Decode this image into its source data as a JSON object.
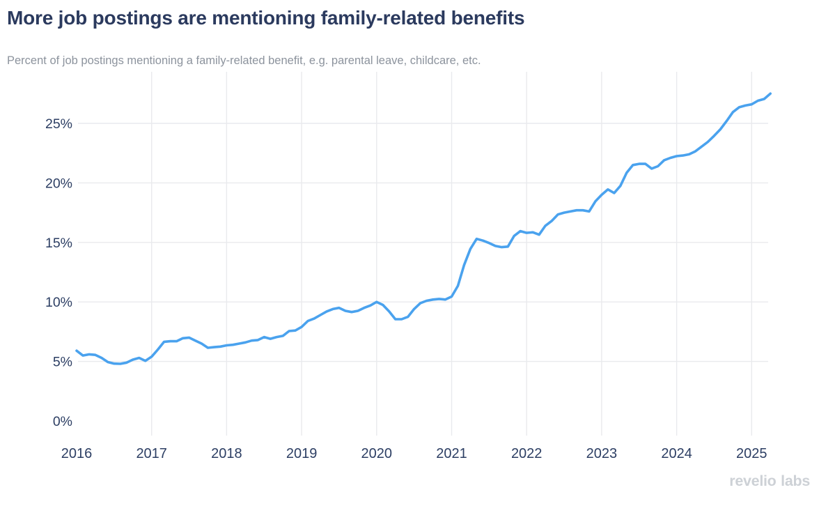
{
  "header": {
    "title": "More job postings are mentioning family-related benefits",
    "subtitle": "Percent of job postings mentioning a family-related benefit, e.g. parental leave, childcare, etc."
  },
  "footer": {
    "logo_text": "revelio labs"
  },
  "colors": {
    "line": "#4AA2EE",
    "title_text": "#2B3A5E",
    "subtitle_text": "#8C939D",
    "axis_label": "#2C3E63",
    "gridline": "#E9EAED",
    "logo_text": "#CDD1D6",
    "background": "#FFFFFF"
  },
  "chart_data": {
    "type": "line",
    "title": "More job postings are mentioning family-related benefits",
    "subtitle": "Percent of job postings mentioning a family-related benefit, e.g. parental leave, childcare, etc.",
    "xlabel": "",
    "ylabel": "Percent of job postings",
    "x_tick_labels": [
      "2016",
      "2017",
      "2018",
      "2019",
      "2020",
      "2021",
      "2022",
      "2023",
      "2024",
      "2025"
    ],
    "y_tick_labels": [
      "0%",
      "5%",
      "10%",
      "15%",
      "20%",
      "25%"
    ],
    "y_tick_values": [
      0,
      5,
      10,
      15,
      20,
      25
    ],
    "ylim": [
      0,
      29
    ],
    "grid": true,
    "legend_position": "none",
    "x_start_month": "2016-01",
    "x_end_month": "2025-04",
    "x_frequency": "monthly",
    "series": [
      {
        "name": "Percent of job postings mentioning a family-related benefit",
        "color": "#4AA2EE",
        "values": [
          5.9,
          5.5,
          5.6,
          5.55,
          5.3,
          4.95,
          4.82,
          4.8,
          4.9,
          5.15,
          5.3,
          5.05,
          5.4,
          6.0,
          6.65,
          6.7,
          6.7,
          6.95,
          7.0,
          6.75,
          6.5,
          6.15,
          6.2,
          6.25,
          6.35,
          6.4,
          6.5,
          6.6,
          6.75,
          6.8,
          7.05,
          6.9,
          7.05,
          7.15,
          7.55,
          7.6,
          7.9,
          8.4,
          8.6,
          8.9,
          9.2,
          9.4,
          9.5,
          9.25,
          9.15,
          9.25,
          9.5,
          9.7,
          10.0,
          9.75,
          9.2,
          8.55,
          8.55,
          8.75,
          9.4,
          9.9,
          10.1,
          10.2,
          10.25,
          10.2,
          10.45,
          11.35,
          13.1,
          14.45,
          15.3,
          15.15,
          14.95,
          14.7,
          14.6,
          14.65,
          15.55,
          15.95,
          15.8,
          15.85,
          15.65,
          16.4,
          16.8,
          17.35,
          17.5,
          17.6,
          17.7,
          17.7,
          17.6,
          18.45,
          19.0,
          19.45,
          19.15,
          19.75,
          20.85,
          21.5,
          21.6,
          21.6,
          21.2,
          21.4,
          21.9,
          22.1,
          22.25,
          22.3,
          22.4,
          22.65,
          23.05,
          23.45,
          23.95,
          24.5,
          25.2,
          25.95,
          26.35,
          26.5,
          26.6,
          26.9,
          27.05,
          27.5
        ]
      }
    ]
  }
}
